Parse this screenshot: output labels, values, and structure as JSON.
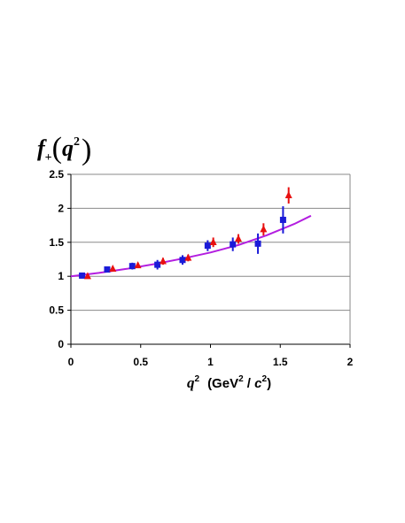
{
  "chart_data": {
    "type": "scatter",
    "title": "",
    "ylabel": {
      "symbol": "f",
      "subscript": "+",
      "open": "(",
      "var": "q",
      "exp": "2",
      "close": ")"
    },
    "xlabel": {
      "var": "q",
      "exp": "2",
      "unit_open": "(GeV",
      "unit_exp": "2",
      "unit_mid": " / ",
      "unit_var": "c",
      "unit_exp2": "2",
      "unit_close": ")"
    },
    "xlim": [
      0,
      2
    ],
    "ylim": [
      0,
      2.5
    ],
    "x_ticks": [
      "0",
      "0.5",
      "1",
      "1.5",
      "2"
    ],
    "y_ticks": [
      "0",
      "0.5",
      "1",
      "1.5",
      "2",
      "2.5"
    ],
    "grid": "horizontal",
    "series": [
      {
        "marker": "square",
        "color": "#1b1bd8",
        "points": [
          {
            "x": 0.08,
            "y": 1.01,
            "err": 0.03
          },
          {
            "x": 0.26,
            "y": 1.1,
            "err": 0.04
          },
          {
            "x": 0.44,
            "y": 1.15,
            "err": 0.05
          },
          {
            "x": 0.62,
            "y": 1.17,
            "err": 0.07
          },
          {
            "x": 0.8,
            "y": 1.24,
            "err": 0.07
          },
          {
            "x": 0.98,
            "y": 1.45,
            "err": 0.08
          },
          {
            "x": 1.16,
            "y": 1.47,
            "err": 0.1
          },
          {
            "x": 1.34,
            "y": 1.48,
            "err": 0.15
          },
          {
            "x": 1.52,
            "y": 1.83,
            "err": 0.2
          }
        ]
      },
      {
        "marker": "triangle",
        "color": "#e81010",
        "points": [
          {
            "x": 0.12,
            "y": 1.0,
            "err": 0.02
          },
          {
            "x": 0.3,
            "y": 1.11,
            "err": 0.03
          },
          {
            "x": 0.48,
            "y": 1.16,
            "err": 0.04
          },
          {
            "x": 0.66,
            "y": 1.22,
            "err": 0.05
          },
          {
            "x": 0.84,
            "y": 1.27,
            "err": 0.05
          },
          {
            "x": 1.02,
            "y": 1.5,
            "err": 0.07
          },
          {
            "x": 1.2,
            "y": 1.55,
            "err": 0.07
          },
          {
            "x": 1.38,
            "y": 1.69,
            "err": 0.09
          },
          {
            "x": 1.56,
            "y": 2.19,
            "err": 0.12
          }
        ]
      }
    ],
    "fit": {
      "color": "#b31ee0",
      "x": [
        0,
        0.2,
        0.4,
        0.6,
        0.8,
        1.0,
        1.2,
        1.4,
        1.6,
        1.72
      ],
      "y": [
        1.0,
        1.05,
        1.11,
        1.18,
        1.26,
        1.35,
        1.46,
        1.6,
        1.77,
        1.89
      ]
    }
  }
}
